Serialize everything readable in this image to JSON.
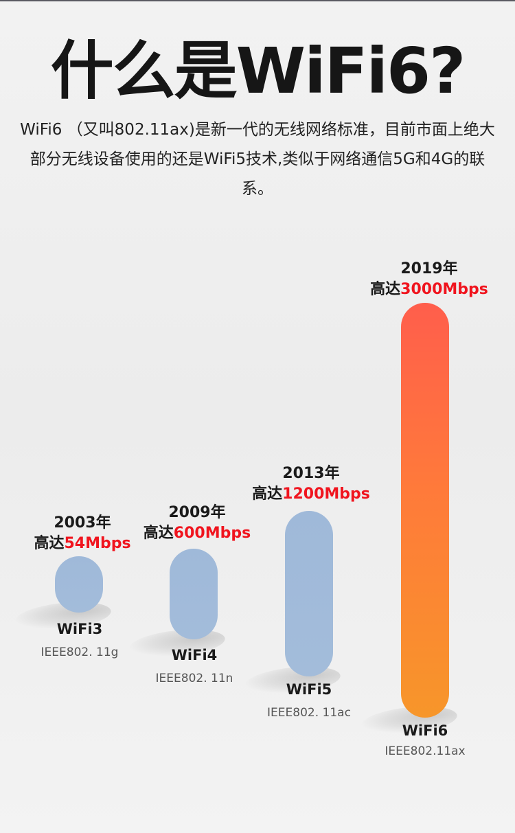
{
  "title": "什么是WiFi6?",
  "intro": "WiFi6 （又叫802.11ax)是新一代的无线网络标准，目前市面上绝大部分无线设备使用的还是WiFi5技术,类似于网络通信5G和4G的联系。",
  "colors": {
    "accent_red": "#f0141e",
    "bar_blue": "#a3bcda",
    "bar_hot_top": "#ff5e4c",
    "bar_hot_bottom": "#f7962a"
  },
  "chart_data": {
    "type": "bar",
    "categories": [
      "WiFi3",
      "WiFi4",
      "WiFi5",
      "WiFi6"
    ],
    "values": [
      54,
      600,
      1200,
      3000
    ],
    "unit": "Mbps",
    "items": [
      {
        "name": "WiFi3",
        "standard": "IEEE802. 11g",
        "year": "2003年",
        "prefix": "高达",
        "speed": "54Mbps",
        "value": 54
      },
      {
        "name": "WiFi4",
        "standard": "IEEE802. 11n",
        "year": "2009年",
        "prefix": "高达",
        "speed": "600Mbps",
        "value": 600
      },
      {
        "name": "WiFi5",
        "standard": "IEEE802. 11ac",
        "year": "2013年",
        "prefix": "高达",
        "speed": "1200Mbps",
        "value": 1200
      },
      {
        "name": "WiFi6",
        "standard": "IEEE802.11ax",
        "year": "2019年",
        "prefix": "高达",
        "speed": "3000Mbps",
        "value": 3000
      }
    ]
  }
}
